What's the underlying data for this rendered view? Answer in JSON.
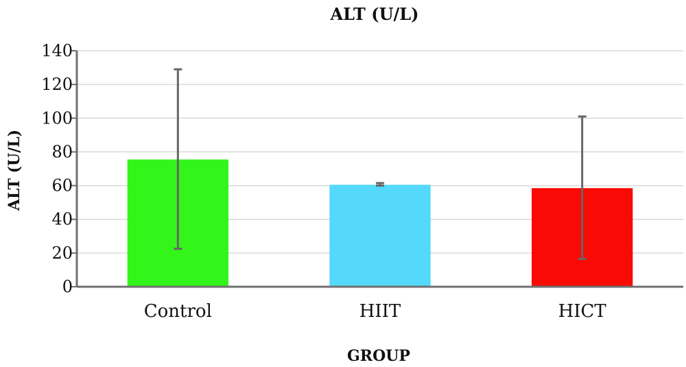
{
  "chart_data": {
    "type": "bar",
    "title": "ALT (U/L)",
    "xlabel": "GROUP",
    "ylabel": "ALT (U/L)",
    "ylim": [
      0,
      140
    ],
    "ytick_step": 20,
    "grid": true,
    "legend": "none",
    "categories": [
      "Control",
      "HIIT",
      "HICT"
    ],
    "values": [
      75.5,
      60.5,
      58.5
    ],
    "error_low": [
      22.5,
      60,
      16.5
    ],
    "error_high": [
      129,
      61.5,
      101
    ],
    "colors": [
      "#33f51a",
      "#55d9fa",
      "#fa0a05"
    ],
    "axis_color": "#6f6f6f",
    "error_color": "#666666"
  }
}
